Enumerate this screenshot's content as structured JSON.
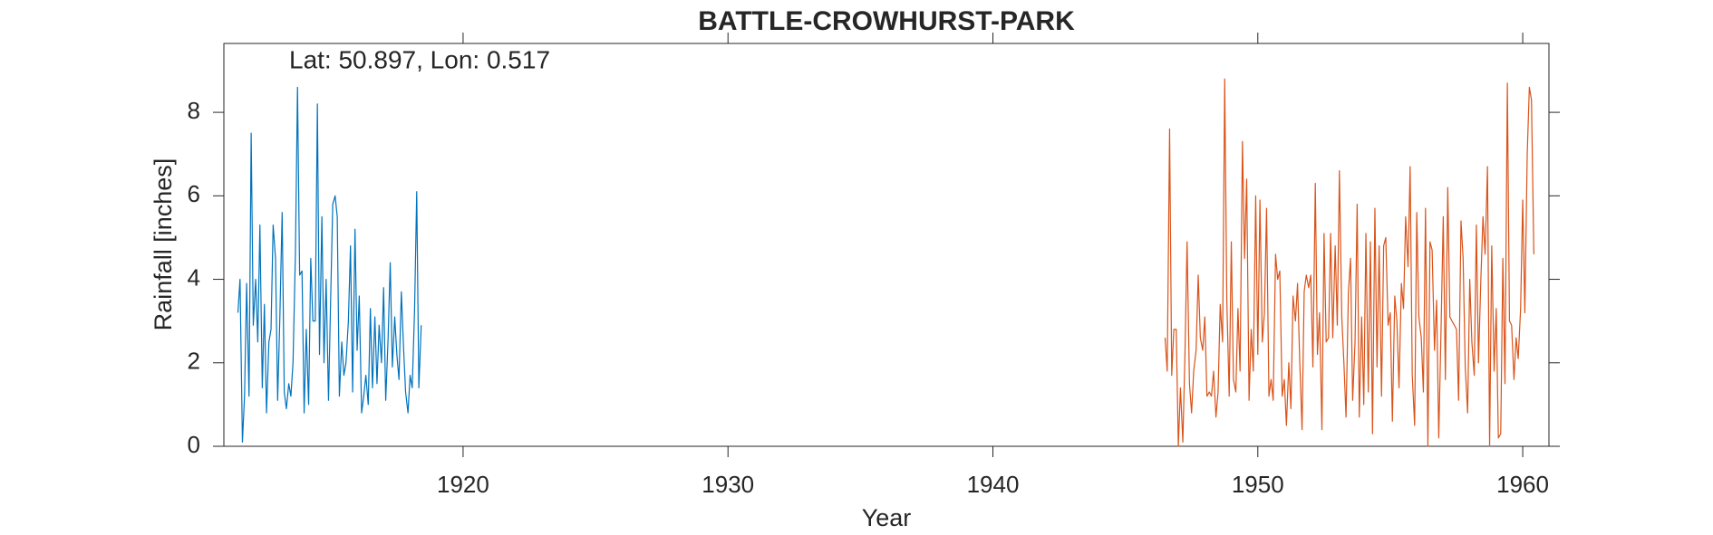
{
  "chart_data": {
    "type": "line",
    "title": "BATTLE-CROWHURST-PARK",
    "annotation": "Lat: 50.897, Lon: 0.517",
    "xlabel": "Year",
    "ylabel": "Rainfall [inches]",
    "xlim": [
      1910.97,
      1960.99
    ],
    "ylim": [
      0,
      9.65
    ],
    "xticks": [
      1920,
      1930,
      1940,
      1950,
      1960
    ],
    "yticks": [
      0,
      2,
      4,
      6,
      8
    ],
    "series": [
      {
        "color": "#0072BD",
        "x": [
          1911.5,
          1911.58,
          1911.67,
          1911.75,
          1911.83,
          1911.92,
          1912,
          1912.08,
          1912.17,
          1912.25,
          1912.33,
          1912.42,
          1912.5,
          1912.58,
          1912.67,
          1912.75,
          1912.83,
          1912.92,
          1913,
          1913.08,
          1913.17,
          1913.25,
          1913.33,
          1913.42,
          1913.5,
          1913.58,
          1913.67,
          1913.75,
          1913.83,
          1913.92,
          1914,
          1914.08,
          1914.17,
          1914.25,
          1914.33,
          1914.42,
          1914.5,
          1914.58,
          1914.67,
          1914.75,
          1914.83,
          1914.92,
          1915,
          1915.08,
          1915.17,
          1915.25,
          1915.33,
          1915.42,
          1915.5,
          1915.58,
          1915.67,
          1915.75,
          1915.83,
          1915.92,
          1916,
          1916.08,
          1916.17,
          1916.25,
          1916.33,
          1916.42,
          1916.5,
          1916.58,
          1916.67,
          1916.75,
          1916.83,
          1916.92,
          1917,
          1917.08,
          1917.17,
          1917.25,
          1917.33,
          1917.42,
          1917.5,
          1917.58,
          1917.67,
          1917.75,
          1917.83,
          1917.92,
          1918,
          1918.08,
          1918.17,
          1918.25,
          1918.33,
          1918.42
        ],
        "values": [
          3.2,
          4.0,
          0.1,
          1.2,
          3.9,
          1.2,
          7.5,
          2.9,
          4.0,
          2.5,
          5.3,
          1.4,
          3.4,
          0.8,
          2.5,
          2.8,
          5.3,
          4.5,
          1.1,
          3.0,
          5.6,
          1.3,
          0.9,
          1.5,
          1.2,
          2.0,
          4.6,
          8.6,
          4.1,
          4.2,
          0.8,
          2.8,
          1.0,
          4.5,
          3.0,
          3.0,
          8.2,
          2.2,
          5.5,
          2.0,
          4.0,
          1.1,
          3.5,
          5.8,
          6.0,
          5.5,
          1.2,
          2.5,
          1.7,
          2.0,
          3.0,
          4.8,
          1.3,
          5.2,
          2.3,
          3.6,
          0.8,
          1.2,
          1.7,
          1.0,
          3.3,
          1.4,
          3.1,
          1.5,
          2.9,
          2.0,
          3.8,
          1.1,
          2.6,
          4.4,
          1.9,
          3.1,
          2.2,
          1.6,
          3.7,
          2.4,
          1.3,
          0.8,
          1.7,
          1.4,
          3.3,
          6.1,
          1.4,
          2.9
        ]
      },
      {
        "color": "#D95319",
        "x": [
          1946.5,
          1946.58,
          1946.67,
          1946.75,
          1946.83,
          1946.92,
          1947,
          1947.08,
          1947.17,
          1947.25,
          1947.33,
          1947.42,
          1947.5,
          1947.58,
          1947.67,
          1947.75,
          1947.83,
          1947.92,
          1948,
          1948.08,
          1948.17,
          1948.25,
          1948.33,
          1948.42,
          1948.5,
          1948.58,
          1948.67,
          1948.75,
          1948.83,
          1948.92,
          1949,
          1949.08,
          1949.17,
          1949.25,
          1949.33,
          1949.42,
          1949.5,
          1949.58,
          1949.67,
          1949.75,
          1949.83,
          1949.92,
          1950,
          1950.08,
          1950.17,
          1950.25,
          1950.33,
          1950.42,
          1950.5,
          1950.58,
          1950.67,
          1950.75,
          1950.83,
          1950.92,
          1951,
          1951.08,
          1951.17,
          1951.25,
          1951.33,
          1951.42,
          1951.5,
          1951.58,
          1951.67,
          1951.75,
          1951.83,
          1951.92,
          1952,
          1952.08,
          1952.17,
          1952.25,
          1952.33,
          1952.42,
          1952.5,
          1952.58,
          1952.67,
          1952.75,
          1952.83,
          1952.92,
          1953,
          1953.08,
          1953.17,
          1953.25,
          1953.33,
          1953.42,
          1953.5,
          1953.58,
          1953.67,
          1953.75,
          1953.83,
          1953.92,
          1954,
          1954.08,
          1954.17,
          1954.25,
          1954.33,
          1954.42,
          1954.5,
          1954.58,
          1954.67,
          1954.75,
          1954.83,
          1954.92,
          1955,
          1955.08,
          1955.17,
          1955.25,
          1955.33,
          1955.42,
          1955.5,
          1955.58,
          1955.67,
          1955.75,
          1955.83,
          1955.92,
          1956,
          1956.08,
          1956.17,
          1956.25,
          1956.33,
          1956.42,
          1956.5,
          1956.58,
          1956.67,
          1956.75,
          1956.83,
          1956.92,
          1957,
          1957.08,
          1957.17,
          1957.25,
          1957.33,
          1957.42,
          1957.5,
          1957.58,
          1957.67,
          1957.75,
          1957.83,
          1957.92,
          1958,
          1958.08,
          1958.17,
          1958.25,
          1958.33,
          1958.42,
          1958.5,
          1958.58,
          1958.67,
          1958.75,
          1958.83,
          1958.92,
          1959,
          1959.08,
          1959.17,
          1959.25,
          1959.33,
          1959.42,
          1959.5,
          1959.58,
          1959.67,
          1959.75,
          1959.83,
          1959.92,
          1960,
          1960.08,
          1960.17,
          1960.25,
          1960.33,
          1960.42
        ],
        "values": [
          2.6,
          1.8,
          7.6,
          1.7,
          2.8,
          2.8,
          0.0,
          1.4,
          0.1,
          2.2,
          4.9,
          1.5,
          0.8,
          1.8,
          2.3,
          4.1,
          2.6,
          2.3,
          3.1,
          1.2,
          1.3,
          1.2,
          1.8,
          0.7,
          1.3,
          3.4,
          2.5,
          8.8,
          3.5,
          1.2,
          4.9,
          1.6,
          1.3,
          3.3,
          1.8,
          7.3,
          4.5,
          6.4,
          1.1,
          2.8,
          1.8,
          6.0,
          2.2,
          5.9,
          2.5,
          3.2,
          5.7,
          1.2,
          1.6,
          1.1,
          4.6,
          4.0,
          4.2,
          1.2,
          1.6,
          0.5,
          2.0,
          0.9,
          3.6,
          3.0,
          3.9,
          2.1,
          0.4,
          3.7,
          4.1,
          3.8,
          4.1,
          1.9,
          6.3,
          2.2,
          3.2,
          0.4,
          5.1,
          2.5,
          2.6,
          5.1,
          2.6,
          4.8,
          2.9,
          6.6,
          3.1,
          2.0,
          0.7,
          3.7,
          4.5,
          1.1,
          2.5,
          5.8,
          0.7,
          3.1,
          1.0,
          5.1,
          1.3,
          4.9,
          0.3,
          5.7,
          1.9,
          4.8,
          1.2,
          4.8,
          5.0,
          2.9,
          3.2,
          0.6,
          3.6,
          3.0,
          1.4,
          3.9,
          3.3,
          5.5,
          4.3,
          6.7,
          1.7,
          0.5,
          5.6,
          3.1,
          2.6,
          1.3,
          5.7,
          0.0,
          4.9,
          4.7,
          2.3,
          3.5,
          0.2,
          2.9,
          5.5,
          1.6,
          6.2,
          3.1,
          3.0,
          2.9,
          2.8,
          1.1,
          5.4,
          4.5,
          1.9,
          0.8,
          4.0,
          2.5,
          1.7,
          5.3,
          2.0,
          4.0,
          5.5,
          4.6,
          6.7,
          0.0,
          4.8,
          1.8,
          3.3,
          0.2,
          0.3,
          4.5,
          1.5,
          8.7,
          3.0,
          2.9,
          1.6,
          2.6,
          2.1,
          3.3,
          5.9,
          3.2,
          7.0,
          8.6,
          8.3,
          4.6
        ]
      }
    ]
  }
}
